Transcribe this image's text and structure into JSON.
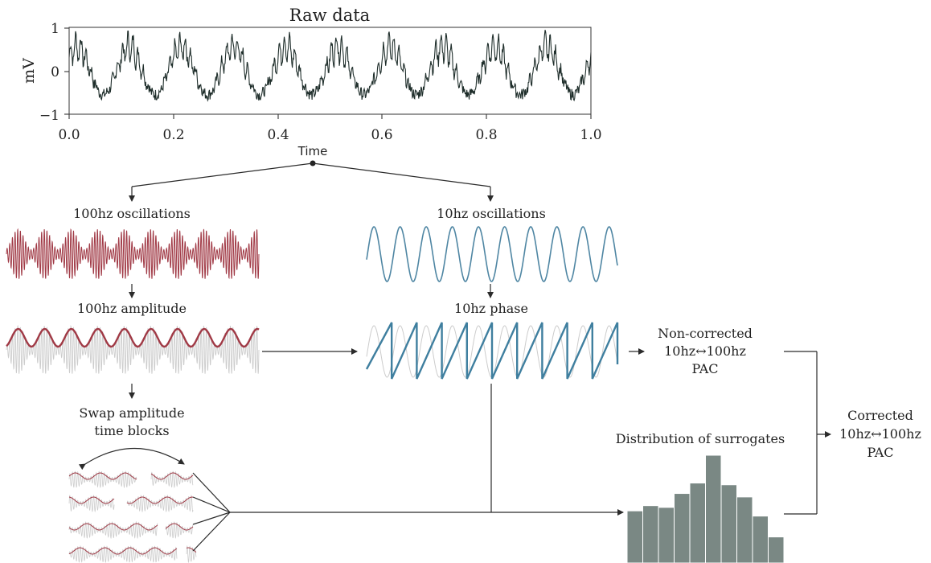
{
  "raw": {
    "title": "Raw data",
    "ylabel": "mV",
    "xlabel": "Time",
    "xticks": [
      "0.0",
      "0.2",
      "0.4",
      "0.6",
      "0.8",
      "1.0"
    ],
    "yticks": [
      "1",
      "0",
      "−1"
    ],
    "xlim": [
      0,
      1
    ],
    "ylim": [
      -1,
      1
    ],
    "line_color": "#1f2e2b"
  },
  "labels": {
    "hf_osc": "100hz oscillations",
    "lf_osc": "10hz oscillations",
    "hf_amp": "100hz amplitude",
    "lf_phase": "10hz phase",
    "swap_line1": "Swap amplitude",
    "swap_line2": "time blocks",
    "noncorr_line1": "Non-corrected",
    "noncorr_line2": "10hz↔100hz",
    "noncorr_line3": "PAC",
    "dist": "Distribution of surrogates",
    "corr_line1": "Corrected",
    "corr_line2": "10hz↔100hz",
    "corr_line3": "PAC"
  },
  "colors": {
    "high_freq": "#a03945",
    "low_freq": "#4f86a3",
    "phase": "#3f7f9f",
    "faint": "#cccccc",
    "histogram": "#7a8884"
  },
  "chart_data": {
    "type": "bar",
    "values": [
      3,
      3.3,
      3.2,
      4,
      4.6,
      6.2,
      4.5,
      3.8,
      2.7,
      1.5
    ]
  }
}
